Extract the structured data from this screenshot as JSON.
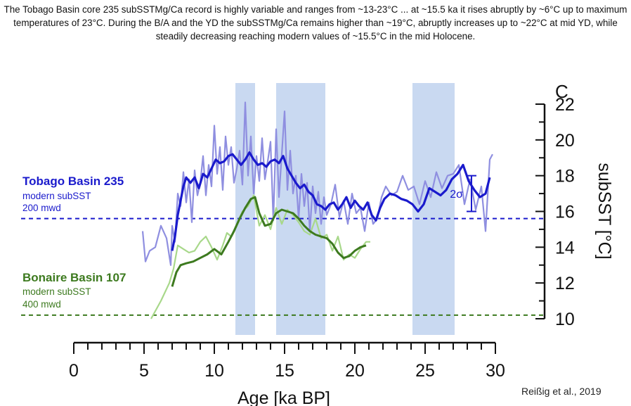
{
  "caption": "The Tobago Basin core 235 subSSTMg/Ca record is highly variable and ranges from ~13-23°C ... at ~15.5 ka it rises abruptly by ~6°C up to maximum temperatures of 23°C.  During the B/A and the YD the subSSTMg/Ca remains higher than ~19°C, abruptly increases up to ~22°C at mid YD, while steadily decreasing reaching modern values of ~15.5°C in the mid Holocene.",
  "credit": "Reißig et al., 2019",
  "colors": {
    "tobago": "#1a1acc",
    "tobago_raw": "#8f8fe0",
    "bonaire": "#3d7a1f",
    "bonaire_raw": "#a8d88a",
    "shade": "#c9d9f1"
  },
  "chart_data": {
    "type": "line",
    "panel_label": "C",
    "xlabel": "Age [ka BP]",
    "ylabel": "subSST [°C]",
    "xlim": [
      0,
      30
    ],
    "ylim": [
      10,
      22
    ],
    "x_ticks": [
      0,
      5,
      10,
      15,
      20,
      25,
      30
    ],
    "y_ticks": [
      10,
      12,
      14,
      16,
      18,
      20,
      22
    ],
    "shaded_intervals": [
      [
        11.5,
        12.9
      ],
      [
        14.4,
        17.9
      ],
      [
        24.1,
        27.1
      ]
    ],
    "error_bar": {
      "label": "2σ",
      "x": 28.3,
      "y_center": 17.0,
      "half_range": 1.0
    },
    "series": [
      {
        "name": "Tobago Basin 235 (raw)",
        "x": [
          4.9,
          5.1,
          5.4,
          5.8,
          6.2,
          6.6,
          6.9,
          7.0,
          7.2,
          7.4,
          7.6,
          7.8,
          8.0,
          8.2,
          8.4,
          8.6,
          8.8,
          9.0,
          9.2,
          9.4,
          9.6,
          9.8,
          10.0,
          10.2,
          10.4,
          10.6,
          10.8,
          11.0,
          11.2,
          11.4,
          11.6,
          11.8,
          12.0,
          12.2,
          12.4,
          12.6,
          12.8,
          13.0,
          13.2,
          13.4,
          13.6,
          13.8,
          14.0,
          14.2,
          14.4,
          14.6,
          14.8,
          15.0,
          15.2,
          15.4,
          15.6,
          15.8,
          16.0,
          16.2,
          16.4,
          16.6,
          16.8,
          17.0,
          17.2,
          17.4,
          17.6,
          17.8,
          18.0,
          18.3,
          18.6,
          18.9,
          19.2,
          19.5,
          19.8,
          20.1,
          20.4,
          20.7,
          21.0,
          21.3,
          21.6,
          21.9,
          22.2,
          22.6,
          23.0,
          23.4,
          23.8,
          24.2,
          24.6,
          25.0,
          25.4,
          25.8,
          26.2,
          26.6,
          27.0,
          27.4,
          27.8,
          28.2,
          28.6,
          29.0,
          29.3,
          29.6,
          29.8
        ],
        "y": [
          14.9,
          13.2,
          13.8,
          14.0,
          15.2,
          14.5,
          13.0,
          15.2,
          14.3,
          17.0,
          16.3,
          18.2,
          16.5,
          17.8,
          15.4,
          18.3,
          16.9,
          17.6,
          19.1,
          16.9,
          18.6,
          17.4,
          20.8,
          18.1,
          19.6,
          17.2,
          20.2,
          18.6,
          19.6,
          17.6,
          18.4,
          19.4,
          17.5,
          22.1,
          18.0,
          20.2,
          17.0,
          19.1,
          17.7,
          20.1,
          17.8,
          18.8,
          19.9,
          15.5,
          20.6,
          16.8,
          19.2,
          21.6,
          17.2,
          19.4,
          17.0,
          18.0,
          15.6,
          18.1,
          16.3,
          17.6,
          14.9,
          17.4,
          15.9,
          17.1,
          15.3,
          16.8,
          15.8,
          16.4,
          17.5,
          15.7,
          16.6,
          15.3,
          17.0,
          15.9,
          16.2,
          14.9,
          16.5,
          15.3,
          15.6,
          16.8,
          17.4,
          16.9,
          17.1,
          18.0,
          17.2,
          17.4,
          16.4,
          17.7,
          16.8,
          18.2,
          17.3,
          18.0,
          18.1,
          18.6,
          16.4,
          17.8,
          16.1,
          17.4,
          14.9,
          18.9,
          19.2
        ]
      },
      {
        "name": "Tobago Basin 235 (smoothed)",
        "x": [
          7.0,
          7.2,
          7.4,
          7.6,
          7.8,
          8.0,
          8.3,
          8.6,
          8.9,
          9.2,
          9.5,
          9.8,
          10.1,
          10.4,
          10.7,
          11.0,
          11.3,
          11.6,
          11.9,
          12.2,
          12.5,
          12.8,
          13.1,
          13.4,
          13.7,
          14.0,
          14.3,
          14.6,
          14.9,
          15.2,
          15.5,
          15.8,
          16.1,
          16.4,
          16.7,
          17.0,
          17.3,
          17.6,
          17.9,
          18.2,
          18.5,
          18.8,
          19.1,
          19.4,
          19.7,
          20.0,
          20.3,
          20.6,
          20.9,
          21.2,
          21.5,
          21.8,
          22.1,
          22.5,
          22.9,
          23.3,
          23.7,
          24.1,
          24.5,
          24.9,
          25.3,
          25.7,
          26.1,
          26.5,
          26.9,
          27.3,
          27.7,
          28.1,
          28.5,
          28.9,
          29.3,
          29.6
        ],
        "y": [
          13.8,
          14.6,
          15.8,
          16.6,
          17.4,
          17.9,
          17.6,
          17.9,
          17.3,
          18.1,
          17.9,
          18.4,
          18.9,
          18.7,
          18.8,
          19.1,
          19.2,
          18.9,
          18.6,
          18.9,
          19.3,
          18.9,
          18.6,
          18.7,
          18.5,
          18.8,
          18.9,
          18.7,
          19.1,
          18.4,
          18.0,
          17.6,
          17.3,
          17.5,
          17.1,
          16.9,
          16.4,
          16.3,
          16.1,
          16.4,
          16.5,
          16.1,
          16.4,
          16.8,
          16.2,
          16.6,
          16.3,
          16.1,
          16.5,
          15.8,
          15.5,
          16.2,
          16.7,
          17.0,
          16.9,
          16.7,
          16.6,
          16.4,
          16.0,
          16.4,
          17.3,
          17.1,
          16.9,
          17.2,
          17.8,
          18.1,
          18.6,
          17.7,
          17.2,
          16.8,
          17.0,
          17.9
        ]
      },
      {
        "name": "Bonaire Basin 107 (raw)",
        "x": [
          5.5,
          6.2,
          6.8,
          7.1,
          7.4,
          7.8,
          8.2,
          8.6,
          9.0,
          9.4,
          9.8,
          10.2,
          10.6,
          10.9,
          11.2,
          11.6,
          12.0,
          12.4,
          12.8,
          13.2,
          13.6,
          14.0,
          14.4,
          14.8,
          15.2,
          15.6,
          16.0,
          16.4,
          16.8,
          17.2,
          17.6,
          18.0,
          18.4,
          18.8,
          19.2,
          19.6,
          20.0,
          20.4,
          20.8,
          21.1
        ],
        "y": [
          10.0,
          11.0,
          12.0,
          12.8,
          14.1,
          13.9,
          13.7,
          13.8,
          14.3,
          14.6,
          14.0,
          13.3,
          14.1,
          14.8,
          14.6,
          15.3,
          16.0,
          16.3,
          16.9,
          15.2,
          15.8,
          15.0,
          16.2,
          15.3,
          16.1,
          15.8,
          15.4,
          14.9,
          14.7,
          15.6,
          14.5,
          14.7,
          13.8,
          14.6,
          13.3,
          13.6,
          13.4,
          13.9,
          14.3,
          14.3
        ]
      },
      {
        "name": "Bonaire Basin 107 (smoothed)",
        "x": [
          7.0,
          7.3,
          7.6,
          8.0,
          8.5,
          9.0,
          9.5,
          10.0,
          10.5,
          11.0,
          11.4,
          11.8,
          12.2,
          12.6,
          12.9,
          13.2,
          13.6,
          14.0,
          14.4,
          14.8,
          15.2,
          15.6,
          16.0,
          16.4,
          16.8,
          17.2,
          17.6,
          18.0,
          18.4,
          18.8,
          19.2,
          19.6,
          20.0,
          20.4,
          20.8
        ],
        "y": [
          11.8,
          12.6,
          13.0,
          13.1,
          13.2,
          13.4,
          13.6,
          13.9,
          13.6,
          14.3,
          14.9,
          15.6,
          16.2,
          16.7,
          16.8,
          15.9,
          15.2,
          15.3,
          15.9,
          16.1,
          16.0,
          15.9,
          15.6,
          15.2,
          14.9,
          14.7,
          14.6,
          14.5,
          14.2,
          13.7,
          13.4,
          13.5,
          13.8,
          14.0,
          14.1
        ]
      }
    ],
    "reference_lines": [
      {
        "y": 15.6,
        "color": "#1a1acc"
      },
      {
        "y": 10.2,
        "color": "#3d7a1f"
      }
    ],
    "annotations": {
      "tobago": {
        "title": "Tobago Basin 235",
        "line1": "modern subSST",
        "line2": "200 mwd"
      },
      "bonaire": {
        "title": "Bonaire Basin 107",
        "line1": "modern subSST",
        "line2": "400 mwd"
      }
    }
  }
}
